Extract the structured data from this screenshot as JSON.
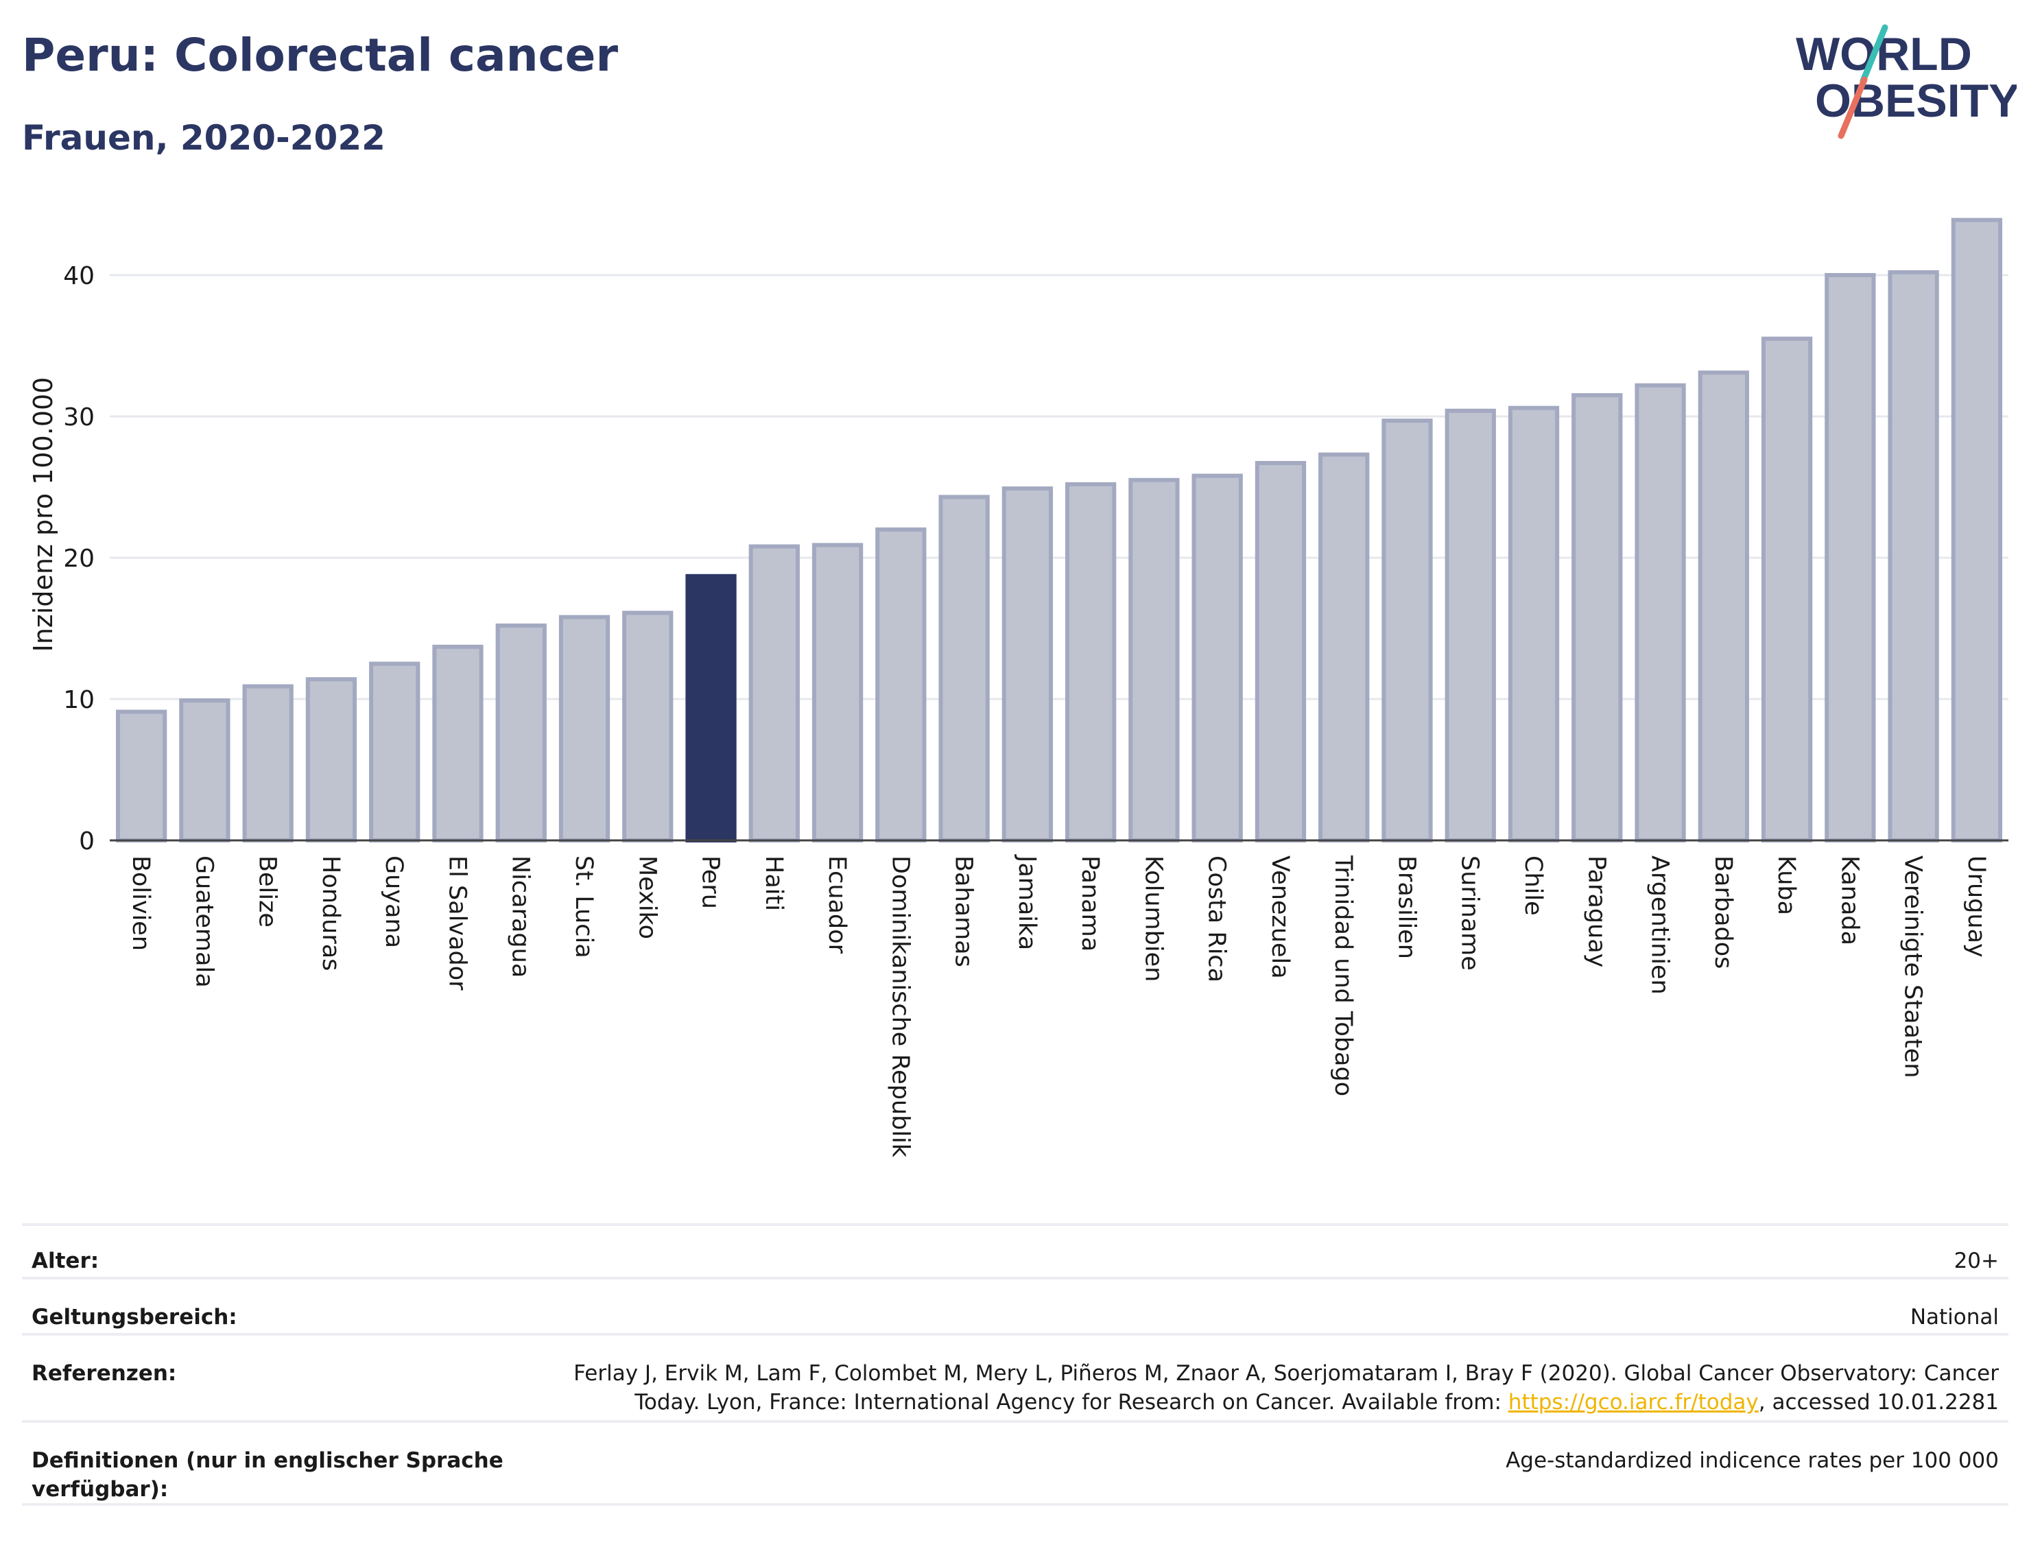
{
  "header": {
    "title": "Peru: Colorectal cancer",
    "subtitle": "Frauen, 2020-2022"
  },
  "logo": {
    "line1": "WORLD",
    "line2": "OBESITY"
  },
  "colors": {
    "highlight": "#2b3663",
    "bar_fill": "#bfc3d0",
    "bar_stroke": "#a3a9c0",
    "grid": "#e6e8ee",
    "logo_text": "#2b3663",
    "logo_teal": "#3bbdb5",
    "logo_coral": "#e8705e"
  },
  "chart_data": {
    "type": "bar",
    "ylabel": "Inzidenz pro 100.000",
    "ylim": [
      0,
      45
    ],
    "yticks": [
      0,
      10,
      20,
      30,
      40
    ],
    "grid": true,
    "highlight": "Peru",
    "categories": [
      "Bolivien",
      "Guatemala",
      "Belize",
      "Honduras",
      "Guyana",
      "El Salvador",
      "Nicaragua",
      "St. Lucia",
      "Mexiko",
      "Peru",
      "Haiti",
      "Ecuador",
      "Dominikanische Republik",
      "Bahamas",
      "Jamaika",
      "Panama",
      "Kolumbien",
      "Costa Rica",
      "Venezuela",
      "Trinidad und Tobago",
      "Brasilien",
      "Suriname",
      "Chile",
      "Paraguay",
      "Argentinien",
      "Barbados",
      "Kuba",
      "Kanada",
      "Vereinigte Staaten",
      "Uruguay"
    ],
    "values": [
      9.1,
      9.9,
      10.9,
      11.4,
      12.5,
      13.7,
      15.2,
      15.8,
      16.1,
      18.7,
      20.8,
      20.9,
      22.0,
      24.3,
      24.9,
      25.2,
      25.5,
      25.8,
      26.7,
      27.3,
      29.7,
      30.4,
      30.6,
      31.5,
      32.2,
      33.1,
      35.5,
      40.0,
      40.2,
      43.9
    ]
  },
  "meta": {
    "age_label": "Alter:",
    "age_value": "20+",
    "scope_label": "Geltungsbereich:",
    "scope_value": "National",
    "ref_label": "Referenzen:",
    "ref_text_1": "Ferlay J, Ervik M, Lam F, Colombet M, Mery L, Piñeros M, Znaor A, Soerjomataram I, Bray F (2020). Global Cancer Observatory: Cancer Today. Lyon, France: International Agency for Research on Cancer. Available from: ",
    "ref_link": "https://gco.iarc.fr/today",
    "ref_text_2": ", accessed 10.01.2281",
    "def_label": "Definitionen (nur in englischer Sprache verfügbar):",
    "def_value": "Age-standardized indicence rates per 100 000"
  }
}
